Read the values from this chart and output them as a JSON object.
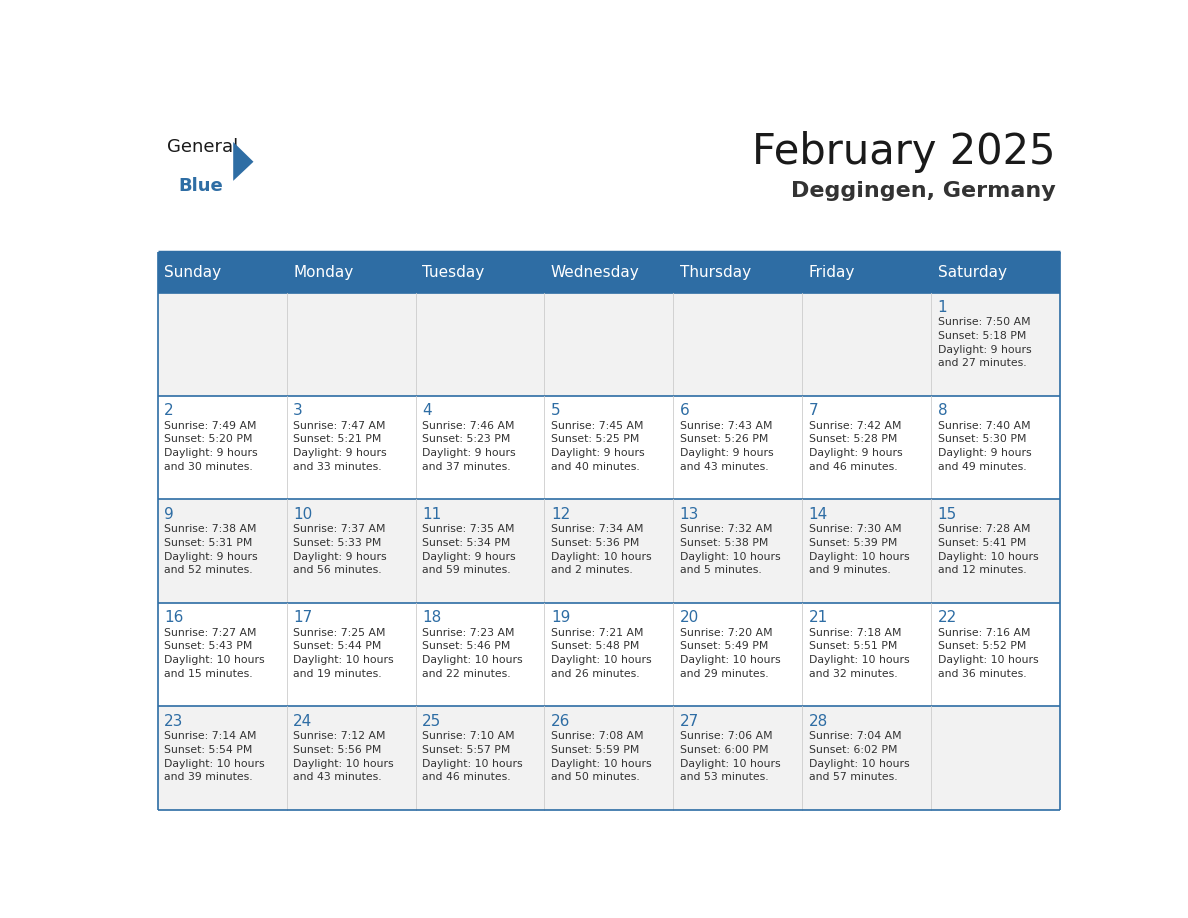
{
  "title": "February 2025",
  "subtitle": "Deggingen, Germany",
  "days_of_week": [
    "Sunday",
    "Monday",
    "Tuesday",
    "Wednesday",
    "Thursday",
    "Friday",
    "Saturday"
  ],
  "header_bg": "#2E6DA4",
  "header_text_color": "#FFFFFF",
  "cell_bg_even": "#F2F2F2",
  "cell_bg_odd": "#FFFFFF",
  "border_color": "#2E6DA4",
  "day_num_color": "#2E6DA4",
  "cell_text_color": "#333333",
  "title_color": "#1a1a1a",
  "subtitle_color": "#333333",
  "logo_general_color": "#1a1a1a",
  "logo_blue_color": "#2E6DA4",
  "weeks": [
    {
      "days": [
        {
          "day": null,
          "info": null
        },
        {
          "day": null,
          "info": null
        },
        {
          "day": null,
          "info": null
        },
        {
          "day": null,
          "info": null
        },
        {
          "day": null,
          "info": null
        },
        {
          "day": null,
          "info": null
        },
        {
          "day": 1,
          "info": "Sunrise: 7:50 AM\nSunset: 5:18 PM\nDaylight: 9 hours\nand 27 minutes."
        }
      ]
    },
    {
      "days": [
        {
          "day": 2,
          "info": "Sunrise: 7:49 AM\nSunset: 5:20 PM\nDaylight: 9 hours\nand 30 minutes."
        },
        {
          "day": 3,
          "info": "Sunrise: 7:47 AM\nSunset: 5:21 PM\nDaylight: 9 hours\nand 33 minutes."
        },
        {
          "day": 4,
          "info": "Sunrise: 7:46 AM\nSunset: 5:23 PM\nDaylight: 9 hours\nand 37 minutes."
        },
        {
          "day": 5,
          "info": "Sunrise: 7:45 AM\nSunset: 5:25 PM\nDaylight: 9 hours\nand 40 minutes."
        },
        {
          "day": 6,
          "info": "Sunrise: 7:43 AM\nSunset: 5:26 PM\nDaylight: 9 hours\nand 43 minutes."
        },
        {
          "day": 7,
          "info": "Sunrise: 7:42 AM\nSunset: 5:28 PM\nDaylight: 9 hours\nand 46 minutes."
        },
        {
          "day": 8,
          "info": "Sunrise: 7:40 AM\nSunset: 5:30 PM\nDaylight: 9 hours\nand 49 minutes."
        }
      ]
    },
    {
      "days": [
        {
          "day": 9,
          "info": "Sunrise: 7:38 AM\nSunset: 5:31 PM\nDaylight: 9 hours\nand 52 minutes."
        },
        {
          "day": 10,
          "info": "Sunrise: 7:37 AM\nSunset: 5:33 PM\nDaylight: 9 hours\nand 56 minutes."
        },
        {
          "day": 11,
          "info": "Sunrise: 7:35 AM\nSunset: 5:34 PM\nDaylight: 9 hours\nand 59 minutes."
        },
        {
          "day": 12,
          "info": "Sunrise: 7:34 AM\nSunset: 5:36 PM\nDaylight: 10 hours\nand 2 minutes."
        },
        {
          "day": 13,
          "info": "Sunrise: 7:32 AM\nSunset: 5:38 PM\nDaylight: 10 hours\nand 5 minutes."
        },
        {
          "day": 14,
          "info": "Sunrise: 7:30 AM\nSunset: 5:39 PM\nDaylight: 10 hours\nand 9 minutes."
        },
        {
          "day": 15,
          "info": "Sunrise: 7:28 AM\nSunset: 5:41 PM\nDaylight: 10 hours\nand 12 minutes."
        }
      ]
    },
    {
      "days": [
        {
          "day": 16,
          "info": "Sunrise: 7:27 AM\nSunset: 5:43 PM\nDaylight: 10 hours\nand 15 minutes."
        },
        {
          "day": 17,
          "info": "Sunrise: 7:25 AM\nSunset: 5:44 PM\nDaylight: 10 hours\nand 19 minutes."
        },
        {
          "day": 18,
          "info": "Sunrise: 7:23 AM\nSunset: 5:46 PM\nDaylight: 10 hours\nand 22 minutes."
        },
        {
          "day": 19,
          "info": "Sunrise: 7:21 AM\nSunset: 5:48 PM\nDaylight: 10 hours\nand 26 minutes."
        },
        {
          "day": 20,
          "info": "Sunrise: 7:20 AM\nSunset: 5:49 PM\nDaylight: 10 hours\nand 29 minutes."
        },
        {
          "day": 21,
          "info": "Sunrise: 7:18 AM\nSunset: 5:51 PM\nDaylight: 10 hours\nand 32 minutes."
        },
        {
          "day": 22,
          "info": "Sunrise: 7:16 AM\nSunset: 5:52 PM\nDaylight: 10 hours\nand 36 minutes."
        }
      ]
    },
    {
      "days": [
        {
          "day": 23,
          "info": "Sunrise: 7:14 AM\nSunset: 5:54 PM\nDaylight: 10 hours\nand 39 minutes."
        },
        {
          "day": 24,
          "info": "Sunrise: 7:12 AM\nSunset: 5:56 PM\nDaylight: 10 hours\nand 43 minutes."
        },
        {
          "day": 25,
          "info": "Sunrise: 7:10 AM\nSunset: 5:57 PM\nDaylight: 10 hours\nand 46 minutes."
        },
        {
          "day": 26,
          "info": "Sunrise: 7:08 AM\nSunset: 5:59 PM\nDaylight: 10 hours\nand 50 minutes."
        },
        {
          "day": 27,
          "info": "Sunrise: 7:06 AM\nSunset: 6:00 PM\nDaylight: 10 hours\nand 53 minutes."
        },
        {
          "day": 28,
          "info": "Sunrise: 7:04 AM\nSunset: 6:02 PM\nDaylight: 10 hours\nand 57 minutes."
        },
        {
          "day": null,
          "info": null
        }
      ]
    }
  ]
}
